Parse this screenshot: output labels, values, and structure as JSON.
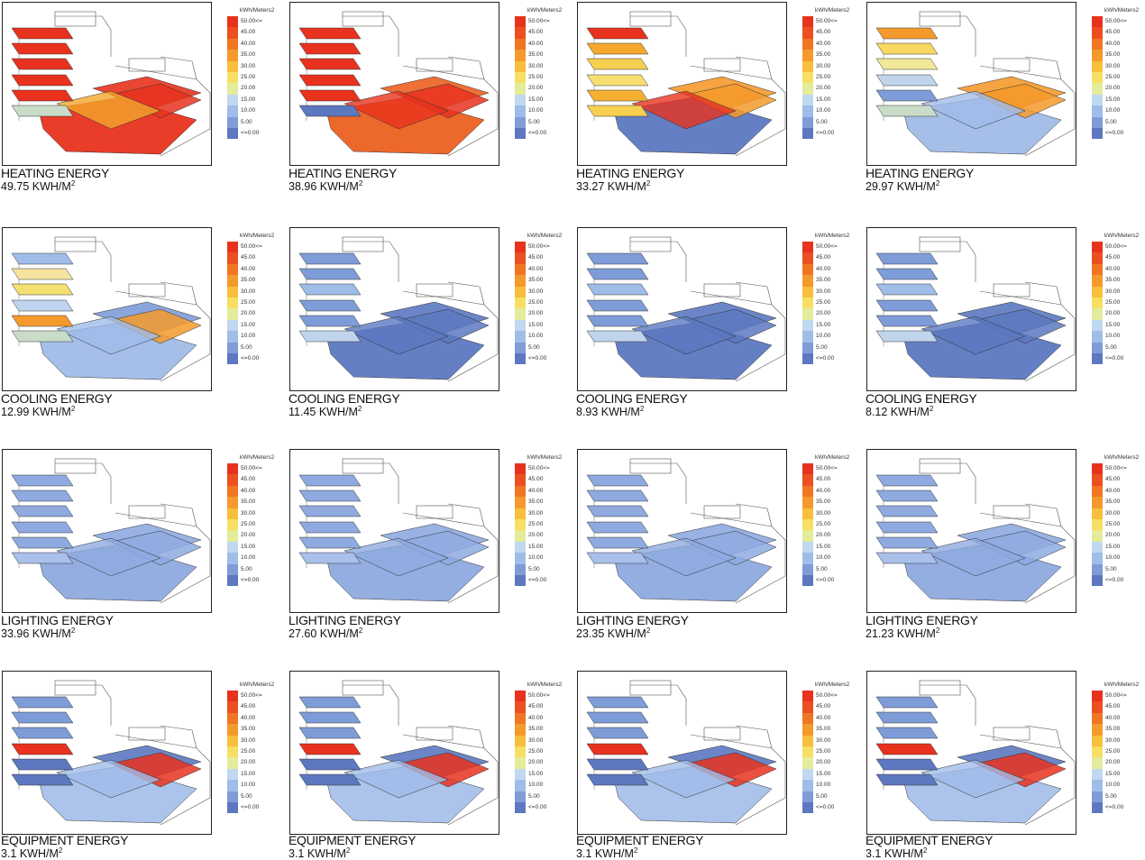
{
  "legend": {
    "unit": "kWh/Meters2",
    "labels": [
      "50.00<=",
      "45.00",
      "40.00",
      "35.00",
      "30.00",
      "25.00",
      "20.00",
      "15.00",
      "10.00",
      "5.00",
      "<=0.00"
    ],
    "colors": [
      "#e8321e",
      "#ec5020",
      "#f07624",
      "#f49a2c",
      "#f8bf3a",
      "#f6df62",
      "#e4ec9c",
      "#c0d8f0",
      "#a0bce8",
      "#7e9cd8",
      "#5c78c0"
    ]
  },
  "rows": [
    {
      "title": "HEATING ENERGY",
      "values": [
        "49.75 KWH/M",
        "38.96 KWH/M",
        "33.27 KWH/M",
        "29.97 KWH/M"
      ]
    },
    {
      "title": "COOLING ENERGY",
      "values": [
        "12.99 KWH/M",
        "11.45 KWH/M",
        "8.93 KWH/M",
        "8.12 KWH/M"
      ]
    },
    {
      "title": "LIGHTING ENERGY",
      "values": [
        "33.96 KWH/M",
        "27.60 KWH/M",
        "23.35 KWH/M",
        "21.23 KWH/M"
      ]
    },
    {
      "title": "EQUIPMENT ENERGY",
      "values": [
        "3.1 KWH/M",
        "3.1 KWH/M",
        "3.1 KWH/M",
        "3.1 KWH/M"
      ]
    }
  ],
  "unit_superscript": "2",
  "slab_colors": [
    [
      "#e8321e",
      "#e8321e",
      "#e8321e",
      "#e8321e",
      "#e8321e",
      "#c8dcc8",
      "#e8321e",
      "#e8321e",
      "#e8321e",
      "#f4a62c"
    ],
    [
      "#e8321e",
      "#e8321e",
      "#e8321e",
      "#e8321e",
      "#e8321e",
      "#5c78c0",
      "#ec6020",
      "#ec6020",
      "#e8321e",
      "#e8321e"
    ],
    [
      "#e8321e",
      "#f6a82e",
      "#f6d050",
      "#f8e070",
      "#f6b030",
      "#f6d050",
      "#5c78c0",
      "#f49a2c",
      "#f49a2c",
      "#e8321e"
    ],
    [
      "#f49a2c",
      "#f8d860",
      "#f0e898",
      "#c0d4ec",
      "#7e9cd8",
      "#c8dcc8",
      "#a0bce8",
      "#f49a2c",
      "#f49a2c",
      "#a0bce8"
    ],
    [
      "#a0bce8",
      "#f6e4a0",
      "#f4e070",
      "#c0d4f0",
      "#f49a2c",
      "#c8dcc8",
      "#a0bce8",
      "#7e9cd8",
      "#f49a2c",
      "#a0bce8"
    ],
    [
      "#7e9cd8",
      "#7e9cd8",
      "#a0bce8",
      "#7e9cd8",
      "#7e9cd8",
      "#c0d4ec",
      "#5c78c0",
      "#5c78c0",
      "#5c78c0",
      "#5c78c0"
    ],
    [
      "#7e9cd8",
      "#7e9cd8",
      "#a0bce8",
      "#7e9cd8",
      "#7e9cd8",
      "#c0d4ec",
      "#5c78c0",
      "#5c78c0",
      "#5c78c0",
      "#5c78c0"
    ],
    [
      "#7e9cd8",
      "#7e9cd8",
      "#a0bce8",
      "#7e9cd8",
      "#7e9cd8",
      "#c0d4ec",
      "#5c78c0",
      "#5c78c0",
      "#5c78c0",
      "#5c78c0"
    ],
    [
      "#8eaae0",
      "#8eaae0",
      "#8eaae0",
      "#8eaae0",
      "#8eaae0",
      "#a8c0ea",
      "#8eaae0",
      "#8eaae0",
      "#8eaae0",
      "#8eaae0"
    ],
    [
      "#8eaae0",
      "#8eaae0",
      "#8eaae0",
      "#8eaae0",
      "#8eaae0",
      "#a8c0ea",
      "#8eaae0",
      "#8eaae0",
      "#8eaae0",
      "#8eaae0"
    ],
    [
      "#8eaae0",
      "#8eaae0",
      "#8eaae0",
      "#8eaae0",
      "#8eaae0",
      "#a8c0ea",
      "#8eaae0",
      "#8eaae0",
      "#8eaae0",
      "#8eaae0"
    ],
    [
      "#8eaae0",
      "#8eaae0",
      "#8eaae0",
      "#8eaae0",
      "#8eaae0",
      "#a8c0ea",
      "#8eaae0",
      "#8eaae0",
      "#8eaae0",
      "#8eaae0"
    ],
    [
      "#7e9cd8",
      "#7e9cd8",
      "#7e9cd8",
      "#e8321e",
      "#5c78c0",
      "#5c78c0",
      "#a8c0ea",
      "#5c78c0",
      "#e8321e",
      "#a0bce8"
    ],
    [
      "#7e9cd8",
      "#7e9cd8",
      "#7e9cd8",
      "#e8321e",
      "#5c78c0",
      "#5c78c0",
      "#a8c0ea",
      "#5c78c0",
      "#e8321e",
      "#a0bce8"
    ],
    [
      "#7e9cd8",
      "#7e9cd8",
      "#7e9cd8",
      "#e8321e",
      "#5c78c0",
      "#5c78c0",
      "#a8c0ea",
      "#5c78c0",
      "#e8321e",
      "#a0bce8"
    ],
    [
      "#7e9cd8",
      "#7e9cd8",
      "#7e9cd8",
      "#e8321e",
      "#5c78c0",
      "#5c78c0",
      "#a8c0ea",
      "#5c78c0",
      "#e8321e",
      "#a0bce8"
    ]
  ]
}
